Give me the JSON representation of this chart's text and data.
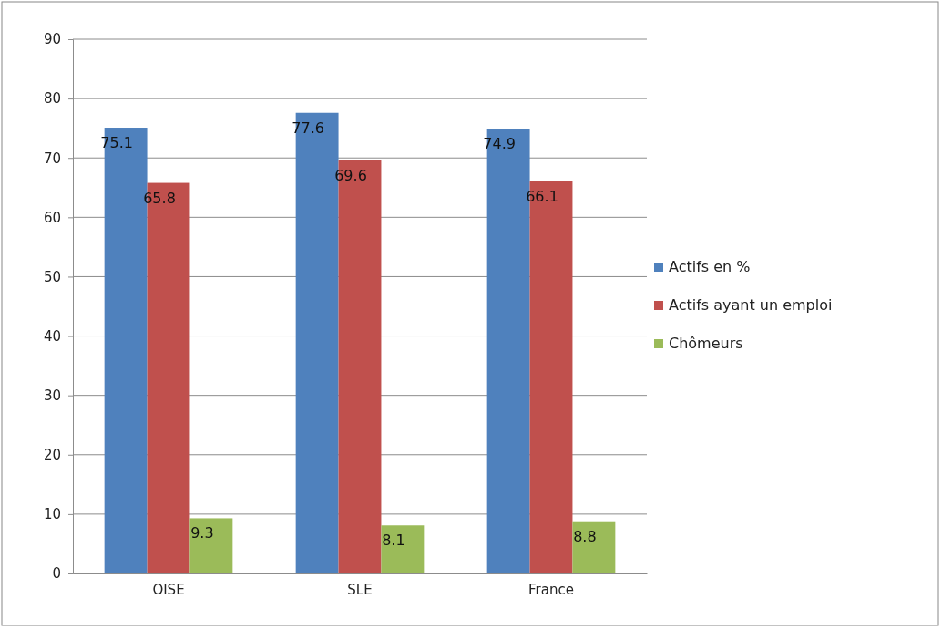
{
  "chart_data": {
    "type": "bar",
    "categories": [
      "OISE",
      "SLE",
      "France"
    ],
    "series": [
      {
        "name": "Actifs en %",
        "color": "#4f81bd",
        "values": [
          75.1,
          77.6,
          74.9
        ]
      },
      {
        "name": "Actifs ayant un emploi",
        "color": "#c0504d",
        "values": [
          65.8,
          69.6,
          66.1
        ]
      },
      {
        "name": "Chômeurs",
        "color": "#9bbb59",
        "values": [
          9.3,
          8.1,
          8.8
        ]
      }
    ],
    "ylim": [
      0,
      90
    ],
    "yticks": [
      0,
      10,
      20,
      30,
      40,
      50,
      60,
      70,
      80,
      90
    ],
    "grid": "y",
    "legend": "right",
    "data_labels": true
  }
}
